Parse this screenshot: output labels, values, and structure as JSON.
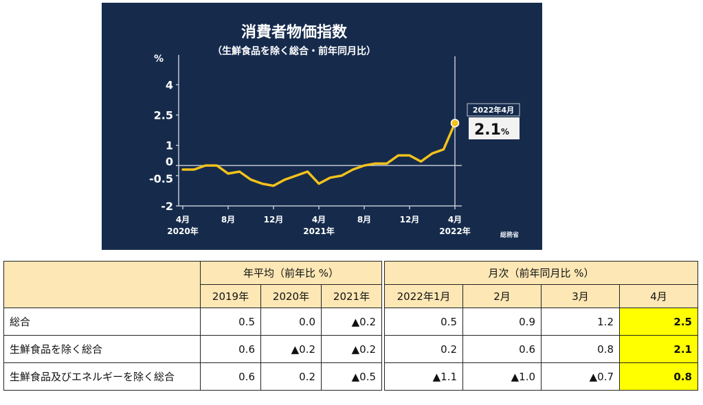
{
  "chart_data": {
    "type": "line",
    "title": "消費者物価指数",
    "subtitle": "（生鮮食品を除く総合・前年同月比）",
    "ylabel": "%",
    "ylim": [
      -2,
      5
    ],
    "y_ticks": [
      "4",
      "2.5",
      "1",
      "0",
      "-0.5",
      "-2"
    ],
    "y_tick_values": [
      4,
      2.5,
      1,
      0,
      -0.5,
      -2
    ],
    "x_tick_labels": [
      {
        "month": "4月",
        "year": "2020年",
        "index": 0
      },
      {
        "month": "8月",
        "year": "",
        "index": 4
      },
      {
        "month": "12月",
        "year": "",
        "index": 8
      },
      {
        "month": "4月",
        "year": "2021年",
        "index": 12
      },
      {
        "month": "8月",
        "year": "",
        "index": 16
      },
      {
        "month": "12月",
        "year": "",
        "index": 20
      },
      {
        "month": "4月",
        "year": "2022年",
        "index": 24
      }
    ],
    "series": [
      {
        "values": [
          -0.2,
          -0.2,
          0,
          0,
          -0.4,
          -0.3,
          -0.7,
          -0.9,
          -1.0,
          -0.7,
          -0.5,
          -0.3,
          -0.9,
          -0.6,
          -0.5,
          -0.2,
          0,
          0.1,
          0.1,
          0.5,
          0.5,
          0.2,
          0.6,
          0.8,
          2.1
        ],
        "color": "#f3c21b"
      }
    ],
    "annotation": {
      "label": "2022年4月",
      "value": "2.1",
      "unit": "%"
    },
    "source": "総務省",
    "colors": {
      "background": "#162b4c",
      "line": "#f3c21b",
      "grid": "#c0c7d2",
      "text": "#ffffff"
    }
  },
  "table": {
    "group_headers": {
      "annual": "年平均（前年比 %）",
      "monthly": "月次（前年同月比 %）"
    },
    "annual_cols": [
      "2019年",
      "2020年",
      "2021年"
    ],
    "monthly_cols": [
      "2022年1月",
      "2月",
      "3月",
      "4月"
    ],
    "rows": [
      {
        "label": "総合",
        "annual": [
          "0.5",
          "0.0",
          "▲0.2"
        ],
        "monthly": [
          "0.5",
          "0.9",
          "1.2",
          "2.5"
        ]
      },
      {
        "label": "生鮮食品を除く総合",
        "annual": [
          "0.6",
          "▲0.2",
          "▲0.2"
        ],
        "monthly": [
          "0.2",
          "0.6",
          "0.8",
          "2.1"
        ]
      },
      {
        "label": "生鮮食品及びエネルギーを除く総合",
        "annual": [
          "0.6",
          "0.2",
          "▲0.5"
        ],
        "monthly": [
          "▲1.1",
          "▲1.0",
          "▲0.7",
          "0.8"
        ]
      }
    ],
    "highlight_color": "#ffff00",
    "header_color": "#fce7b5"
  }
}
